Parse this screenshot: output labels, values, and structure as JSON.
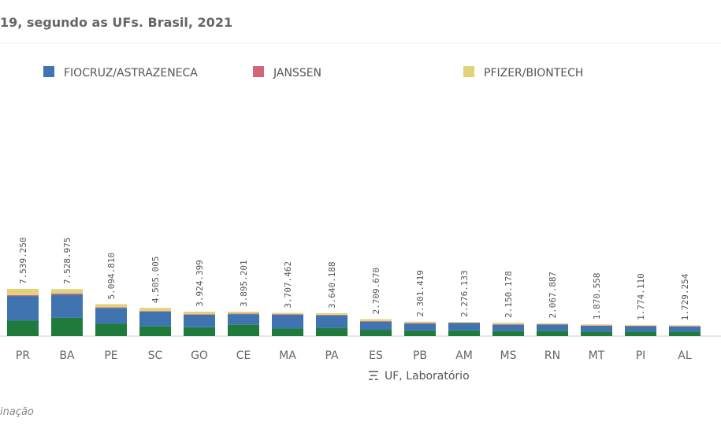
{
  "chart_data": {
    "type": "stacked-bar",
    "title": "19, segundo as UFs. Brasil, 2021",
    "x_label": "UF, Laboratório",
    "footer": "inação",
    "categories": [
      "PR",
      "BA",
      "PE",
      "SC",
      "GO",
      "CE",
      "MA",
      "PA",
      "ES",
      "PB",
      "AM",
      "MS",
      "RN",
      "MT",
      "PI",
      "AL"
    ],
    "series": [
      {
        "color": "#1e7b3c",
        "values": [
          2500000,
          2900000,
          2000000,
          1600000,
          1400000,
          1800000,
          1200000,
          1300000,
          1000000,
          900000,
          900000,
          800000,
          800000,
          700000,
          700000,
          700000
        ]
      },
      {
        "name": "FIOCRUZ/ASTRAZENECA",
        "color": "#3f74b0",
        "values": [
          3900000,
          3700000,
          2500000,
          2300000,
          2000000,
          1700000,
          2200000,
          2000000,
          1300000,
          1100000,
          1200000,
          1000000,
          1050000,
          950000,
          900000,
          850000
        ]
      },
      {
        "name": "JANSSEN",
        "color": "#d0687a",
        "values": [
          150000,
          200000,
          100000,
          100000,
          100000,
          100000,
          100000,
          100000,
          100000,
          100000,
          50000,
          100000,
          50000,
          50000,
          50000,
          50000
        ]
      },
      {
        "name": "PFIZER/BIONTECH",
        "color": "#e2d27c",
        "values": [
          1000000,
          700000,
          500000,
          500000,
          400000,
          300000,
          200000,
          250000,
          300000,
          200000,
          120000,
          250000,
          170000,
          170000,
          120000,
          130000
        ]
      }
    ],
    "totals": [
      7539250,
      7528975,
      5094810,
      4505005,
      3924399,
      3895201,
      3707462,
      3640188,
      2709670,
      2301419,
      2276133,
      2150178,
      2067887,
      1870558,
      1774110,
      1729254
    ],
    "total_labels": [
      "7.539.250",
      "7.528.975",
      "5.094.810",
      "4.505.005",
      "3.924.399",
      "3.895.201",
      "3.707.462",
      "3.640.188",
      "2.709.670",
      "2.301.419",
      "2.276.133",
      "2.150.178",
      "2.067.887",
      "1.870.558",
      "1.774.110",
      "1.729.254"
    ]
  }
}
